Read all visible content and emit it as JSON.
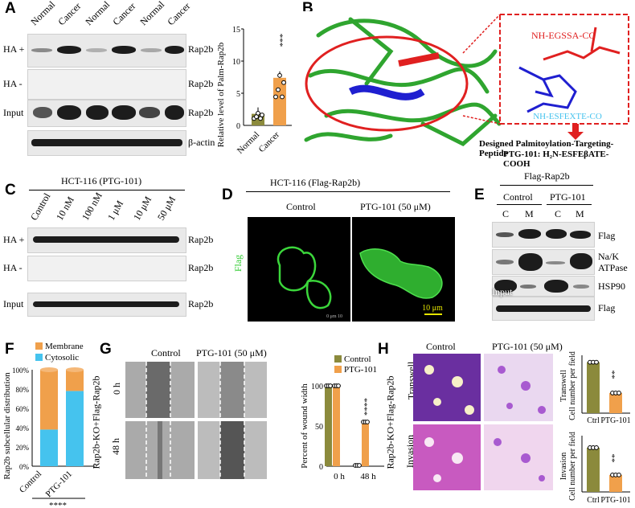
{
  "panels": {
    "A": "A",
    "B": "B",
    "C": "C",
    "D": "D",
    "E": "E",
    "F": "F",
    "G": "G",
    "H": "H"
  },
  "A": {
    "lanes": [
      "Normal",
      "Cancer",
      "Normal",
      "Cancer",
      "Normal",
      "Cancer"
    ],
    "rows_left": [
      "HA +",
      "HA -",
      "Input",
      ""
    ],
    "rows_right": [
      "Rap2b",
      "Rap2b",
      "Rap2b",
      "β-actin"
    ],
    "chart_ylabel": "Relative level of Palm-Rap2b",
    "chart_xcats": [
      "Normal",
      "Cancer"
    ],
    "sig": "***"
  },
  "B": {
    "peptide_top": "NH-EGSSA-CO",
    "peptide_bottom": "NH-ESFEXTE-CO",
    "caption1": "Designed Palmitoylation-Targeting-Peptide",
    "caption2": "PTG-101: H₂N-ESFEβATE-COOH"
  },
  "C": {
    "title": "HCT-116 (PTG-101)",
    "lanes": [
      "Control",
      "10 nM",
      "100 nM",
      "1 μM",
      "10 μM",
      "50 μM"
    ],
    "rows_left": [
      "HA +",
      "HA -",
      "Input"
    ],
    "rows_right": [
      "Rap2b",
      "Rap2b",
      "Rap2b"
    ]
  },
  "D": {
    "title": "HCT-116 (Flag-Rap2b)",
    "col1": "Control",
    "col2": "PTG-101 (50 μM)",
    "side": "Flag",
    "scale": "10 μm"
  },
  "E": {
    "title": "Flag-Rap2b",
    "groups": [
      "Control",
      "PTG-101"
    ],
    "lanes": [
      "C",
      "M",
      "C",
      "M"
    ],
    "rows_right": [
      "Flag",
      "Na/K\nATPase",
      "HSP90",
      "Flag"
    ],
    "input": "Input"
  },
  "F": {
    "legend": [
      "Membrane",
      "Cytosolic"
    ],
    "ylabel": "Rap2b subcellular distribution",
    "yticks": [
      "0%",
      "20%",
      "40%",
      "60%",
      "80%",
      "100%"
    ],
    "xcats": [
      "Control",
      "PTG-101"
    ],
    "sig": "****"
  },
  "G": {
    "col1": "Control",
    "col2": "PTG-101 (50 μM)",
    "side": "Rap2b-KO+Flag-Rap2b",
    "rows": [
      "0 h",
      "48 h"
    ],
    "legend": [
      "Control",
      "PTG-101"
    ],
    "ylabel": "Percent of wound width",
    "yticks": [
      "0",
      "50",
      "100"
    ],
    "xcats": [
      "0 h",
      "48 h"
    ],
    "sig": "****"
  },
  "H": {
    "col1": "Control",
    "col2": "PTG-101 (50 μM)",
    "side": "Rap2b-KO+Flag-Rap2b",
    "rows": [
      "Transwell",
      "Invasion"
    ],
    "ylabel_top1": "Transwell",
    "ylabel_top2": "Cell number per field",
    "ylabel_bot1": "Invasion",
    "ylabel_bot2": "Cell number per field",
    "xcats": [
      "Ctrl",
      "PTG-101"
    ],
    "sig": "**"
  },
  "colors": {
    "olive": "#8b8a3c",
    "orange": "#f0a04b",
    "cyan": "#45c3ee",
    "green": "#33a832",
    "blue": "#1f1fd0",
    "red": "#e02020"
  },
  "chart_data": [
    {
      "type": "bar",
      "categories": [
        "Normal",
        "Cancer"
      ],
      "values": [
        1.8,
        7.4
      ],
      "ylim": [
        0,
        15
      ],
      "yticks": [
        0,
        5,
        10,
        15
      ],
      "ylabel": "Relative level of Palm-Rap2b"
    },
    {
      "type": "bar",
      "categories": [
        "Control",
        "PTG-101"
      ],
      "series": [
        {
          "name": "Cytosolic",
          "values": [
            38,
            78
          ]
        },
        {
          "name": "Membrane",
          "values": [
            62,
            22
          ]
        }
      ],
      "ylim": [
        0,
        100
      ],
      "ylabel": "Rap2b subcellular distribution"
    },
    {
      "type": "bar",
      "categories": [
        "0 h",
        "48 h"
      ],
      "series": [
        {
          "name": "Control",
          "values": [
            100,
            1
          ]
        },
        {
          "name": "PTG-101",
          "values": [
            100,
            55
          ]
        }
      ],
      "ylim": [
        0,
        100
      ],
      "ylabel": "Percent of wound width"
    },
    {
      "type": "bar",
      "categories": [
        "Ctrl",
        "PTG-101"
      ],
      "values": [
        480,
        190
      ],
      "ylim": [
        0,
        500
      ]
    },
    {
      "type": "bar",
      "categories": [
        "Ctrl",
        "PTG-101"
      ],
      "values": [
        430,
        165
      ],
      "ylim": [
        0,
        500
      ]
    }
  ]
}
